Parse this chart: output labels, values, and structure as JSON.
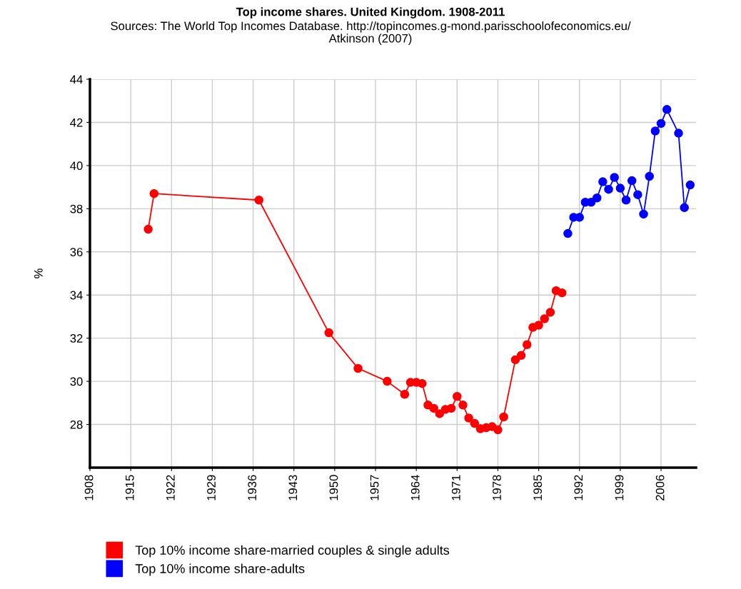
{
  "chart_data": {
    "type": "line",
    "title": "Top income shares. United Kingdom. 1908-2011",
    "subtitle": "Sources: The World Top Incomes Database. http://topincomes.g-mond.parisschoolofeconomics.eu/\nAtkinson (2007)",
    "ylabel": "%",
    "xlim": [
      1908,
      2012
    ],
    "xticks": [
      1908,
      1915,
      1922,
      1929,
      1936,
      1943,
      1950,
      1957,
      1964,
      1971,
      1978,
      1985,
      1992,
      1999,
      2006
    ],
    "ylim": [
      26,
      44
    ],
    "yticks": [
      28,
      30,
      32,
      34,
      36,
      38,
      40,
      42,
      44
    ],
    "grid": true,
    "legend": "bottom left",
    "marker": "circle",
    "line_style": "solid",
    "series": [
      {
        "name": "Top 10% income share-married couples & single adults",
        "color": "#ff0000",
        "x": [
          1918,
          1919,
          1937,
          1949,
          1954,
          1959,
          1962,
          1963,
          1964,
          1965,
          1966,
          1967,
          1968,
          1969,
          1970,
          1971,
          1972,
          1973,
          1974,
          1975,
          1976,
          1977,
          1978,
          1979,
          1981,
          1982,
          1983,
          1984,
          1985,
          1986,
          1987,
          1988,
          1989
        ],
        "values": [
          37.05,
          38.7,
          38.4,
          32.25,
          30.6,
          30.0,
          29.4,
          29.95,
          29.95,
          29.9,
          28.9,
          28.75,
          28.5,
          28.7,
          28.75,
          29.3,
          28.9,
          28.3,
          28.05,
          27.8,
          27.85,
          27.9,
          27.75,
          28.35,
          31.0,
          31.2,
          31.7,
          32.5,
          32.6,
          32.9,
          33.2,
          34.2,
          34.1
        ]
      },
      {
        "name": "Top 10% income share-adults",
        "color": "#0000ff",
        "x": [
          1990,
          1991,
          1992,
          1993,
          1994,
          1995,
          1996,
          1997,
          1998,
          1999,
          2000,
          2001,
          2002,
          2003,
          2004,
          2005,
          2006,
          2007,
          2009,
          2010,
          2011
        ],
        "values": [
          36.85,
          37.6,
          37.6,
          38.3,
          38.3,
          38.5,
          39.25,
          38.9,
          39.45,
          38.95,
          38.4,
          39.3,
          38.65,
          37.75,
          39.5,
          41.6,
          41.95,
          42.6,
          41.5,
          38.05,
          39.1
        ]
      }
    ]
  }
}
